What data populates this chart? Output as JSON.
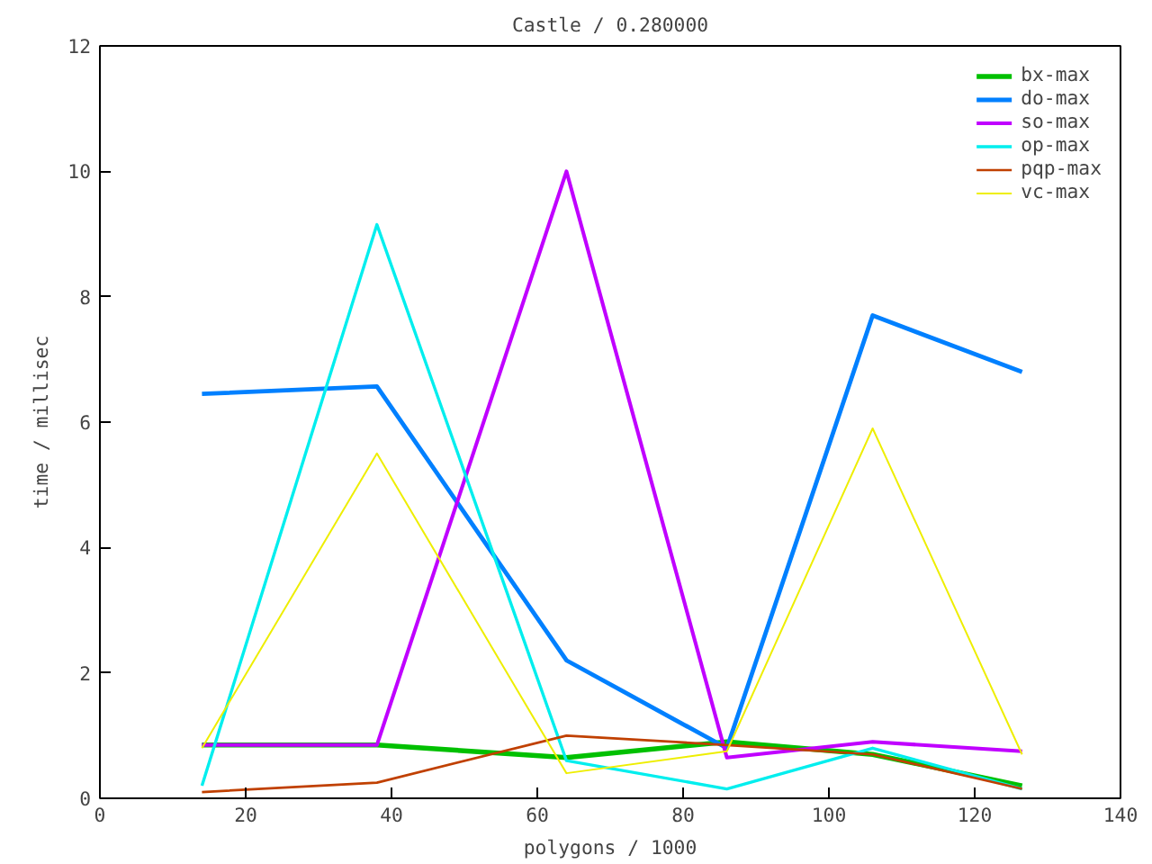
{
  "chart_data": {
    "type": "line",
    "title": "Castle / 0.280000",
    "xlabel": "polygons / 1000",
    "ylabel": "time / millisec",
    "x": [
      14,
      38,
      64,
      86,
      106,
      126.5
    ],
    "xlim": [
      0,
      140
    ],
    "xticks": [
      0,
      20,
      40,
      60,
      80,
      100,
      120,
      140
    ],
    "ylim": [
      0,
      12
    ],
    "yticks": [
      0,
      2,
      4,
      6,
      8,
      10,
      12
    ],
    "grid": false,
    "legend": "top right",
    "marker": "none",
    "line_style": "solid",
    "series": [
      {
        "name": "bx-max",
        "color": "#00c000",
        "values": [
          0.85,
          0.85,
          0.65,
          0.9,
          0.7,
          0.2
        ]
      },
      {
        "name": "do-max",
        "color": "#0080ff",
        "values": [
          6.45,
          6.57,
          2.2,
          0.8,
          7.7,
          6.8
        ]
      },
      {
        "name": "so-max",
        "color": "#c000ff",
        "values": [
          0.85,
          0.85,
          10.0,
          0.65,
          0.9,
          0.75
        ]
      },
      {
        "name": "op-max",
        "color": "#00eeee",
        "values": [
          0.2,
          9.15,
          0.6,
          0.15,
          0.8,
          0.15
        ]
      },
      {
        "name": "pqp-max",
        "color": "#c04000",
        "values": [
          0.1,
          0.25,
          1.0,
          0.85,
          0.7,
          0.15
        ]
      },
      {
        "name": "vc-max",
        "color": "#eeee00",
        "values": [
          0.8,
          5.5,
          0.4,
          0.75,
          5.9,
          0.7
        ]
      }
    ]
  }
}
